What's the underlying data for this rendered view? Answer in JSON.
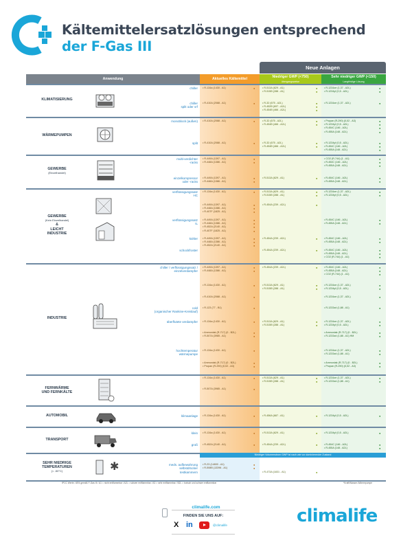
{
  "header": {
    "title_line1": "Kältemittelersatzlösungen entsprechend",
    "title_line2": "der F-Gas III"
  },
  "table": {
    "neue_anlagen": "Neue Anlagen",
    "columns": {
      "anwendung": "Anwendung",
      "aktuelles": "Aktuelles Kältemittel",
      "niedriger": "Niedriger GWP (<750)",
      "niedriger_sub": "übergangsweise",
      "sehr_niedriger": "Sehr niedriger GWP (<150)",
      "sehr_niedriger_sub": "Langfristige Lösung"
    },
    "sections": {
      "klimatisierung": "KLIMATISIERUNG",
      "waermepumpen": "WÄRMEPUMPEN",
      "gewerbe": "GEWERBE",
      "gewerbe_sub": "(Einzelhandel)",
      "gewerbe2": "GEWERBE",
      "gewerbe2_sub": "(Kein Einzelhandel)",
      "amp": "&",
      "leicht": "LEICHT",
      "industrie2": "INDUSTRIE",
      "industrie": "INDUSTRIE",
      "fernwaerme": "FERNWÄRME",
      "fernkaelte": "UND FERNKÄLTE",
      "automobil": "AUTOMOBIL",
      "transport": "TRANSPORT",
      "sehr_niedrige": "SEHR NIEDRIGE",
      "temperaturen": "TEMPERATUREN",
      "temp_sub": "(< -50°C)"
    },
    "subs": {
      "k1": "chiller",
      "k2": "chiller",
      "k2b": "split oder vrf",
      "w1": "monoblock (außen)",
      "w2": "split",
      "g1": "multi-verdichter",
      "g1b": "-racks",
      "g2": "einzelkompressor",
      "g2b": "oder -racks",
      "l1": "verflüssigungssatz",
      "l1b": "HC",
      "l2": "verflüssigungssatz",
      "l2b": "IL",
      "l3": "kühler",
      "l4": "schockfroster",
      "i1": "chiller / verflüssigungssatz /",
      "i1b": "einzelverdampfer",
      "i2": "cold",
      "i2b": "(organischer Rankine-Kreislauf)",
      "i3": "überflutete verdampfer",
      "i4": "hochtemperatur",
      "i4b": "wärmepumpe",
      "auto": "klimaanlage",
      "t1": "klein",
      "t2": "groß",
      "s1": "meds. aufbewahrung",
      "s1b": "selbstdrücker",
      "s1c": "testkammern"
    },
    "cells": {
      "k1a": "R-134a (1430 - A1)",
      "k1n": "R-513A (629 - A1)\nR-515B (288 - A1)",
      "k1s": "R-1234ze (1,37 - A2L)\nR-1234yf (0,5 - A2L)",
      "k2a": "R-410A (2088 - A1)",
      "k2n": "R-32 (675 - A2L)\nR-452B (697 - A2L)\nR-454B (466 - A2L)",
      "k2s": "R-1234ze (1,37 - A2L)",
      "w1a": "R-410A (2088 - A1)",
      "w1n": "R-32 (675 - A2L)\nR-454B (466 - A2L)",
      "w1s": "Propan (R-290) (0,02 - A3)\nR-1234yf (0,5 - A2L)\nR-454C (146 - A2L)\nR-455A (148 - A2L)",
      "w2a": "R-410A (2088 - A1)",
      "w2n": "R-32 (675 - A2L)\nR-454B (466 - A2L)",
      "w2s": "R-1234yf (0,5 - A2L)\nR-454C (146 - A2L)\nR-455A (148 - A2L)",
      "g1a": "R-449A (1397 - A1)\nR-448A (1386 - A1)",
      "g1s": "CO2 (R-744) (1 - A1)\nR-454C (146 - A2L)\nR-455A (148 - A2L)",
      "g2a": "R-449A (1397 - A1)\nR-448A (1386 - A1)",
      "g2n": "R-513A (629 - A1)",
      "g2s": "R-454C (146 - A2L)\nR-455A (148 - A2L)",
      "l1a": "R-134a (1430 - A1)",
      "l1n": "R-513A (629 - A1)\nR-515B (288 - A1)",
      "l1s": "R-1234ze (1,37 - A2L)\nR-1234yf (0,5 - A2L)",
      "l2a": "R-449A (1397 - A1)\nR-448A (1386 - A1)\nR-407F (1825 - A1)",
      "l2n": "R-454A (239 - A2L)",
      "l2s": "R-454C (146 - A2L)\nR-455A (148 - A2L)",
      "l3a": "R-449A (1397 - A1)\nR-448A (1386 - A1)\nR-452A (2140 - A1)\nR-407F (1825 - A1)",
      "l3n": "R-454A (239 - A2L)",
      "l3s": "R-454C (146 - A2L)\nR-455A (148 - A2L)",
      "l4a": "R-449A (1397 - A1)\nR-448A (1386 - A1)\nR-452A (2140 - A1)",
      "l4n": "R-454A (239 - A2L)",
      "l4s": "R-454C (146 - A2L)\nR-455A (148 - A2L)\nCO2 (R-744) (1 - A1)",
      "i1a": "R-449A (1397 - A1)\nR-448A (1386 - A1)",
      "i1n": "R-454A (239 - A2L)",
      "i1s": "R-454C (146 - A2L)\nR-455A (148 - A2L)\nCO2 (R-744) (1 - A1)",
      "i1a2": "R-134a (1430 - A1)",
      "i1n2": "R-513A (629 - A1)\nR-515B (288 - A1)",
      "i1s2": "R-1234ze (1,37 - A2L)\nR-1234yf (0,5 - A2L)",
      "i1a3": "R-410A (2088 - A1)",
      "i1s3": "R-1234ze (1,37 - A2L)",
      "i2a": "R-123 (77 - B1)",
      "i2s": "R-1233zd (1,88 - A1)",
      "i3a": "R-134a (1430 - A1)",
      "i3n": "R-513A (629 - A1)\nR-515B (288 - A1)",
      "i3s": "R-1234ze (1,37 - A2L)\nR-1234yf (0,5 - A2L)",
      "i3a2": "Ammoniak (R-717) (0 - B2L)\nR-507A (3985 - A1)",
      "i3s2": "Ammoniak (R-717) (0 - B2L)\nR-1233zd (1,88 - A1) HM",
      "i4a": "R-134a (1430 - A1)",
      "i4s": "R-1234ze (1,37 - A2L)\nR-1233zd (1,88 - A1)",
      "i4a2": "Ammoniak (R-717) (0 - B2L)\nPropan (R-290) (0,02 - A3)",
      "i4s2": "Ammoniak (R-717) (0 - B2L)\nPropan (R-290) (0,02 - A3)",
      "f1a": "R-134a (1430 - A1)",
      "f1n": "R-513A (629 - A1)\nR-515B (288 - A1)",
      "f1s": "R-1234ze (1,37 - A2L)\nR-1233zd (1,88 - A1)",
      "f2a": "R-507A (3985 - A1)",
      "autoa": "R-134a (1430 - A1)",
      "auton": "R-456A (687 - A1)",
      "autos": "R-1234yf (0,5 - A2L)",
      "t1a": "R-134a (1430 - A1)",
      "t1n": "R-513A (629 - A1)",
      "t1s": "R-1234yf (0,5 - A2L)",
      "t2a": "R-452A (2140 - A1)",
      "t2n": "R-454A (239 - A2L)",
      "t2s": "R-454C (146 - A2L)\nR-455A (148 - A2L)",
      "s_hdr": "Niedriger Volumenstrom GWP ist nach wie vor dominierender Zustand",
      "s1a": "R-23 (14800 - A1)\nR-508B (13396 - A1)",
      "s1n": "R-473A (1831 - A1)"
    },
    "marker": "●"
  },
  "footer": {
    "note": "IPCC Werte / AR4 gemäß F-Gas III / A1 = nicht entflammbar / A2L = schwer entflammbar / A3 = sehr entflammbar / B2L = toxisch und schwer entflammbar",
    "note2": "*Kraft/Wasser-Wärmepumpe",
    "url": "climalife.com",
    "find_us": "FINDEN SIE UNS AUF:",
    "handle": "@climalife",
    "brand": "climalife"
  },
  "colors": {
    "brand_blue": "#1aa6d8",
    "orange": "#f39c2a",
    "lime": "#a8c91a",
    "green": "#3aa640"
  }
}
